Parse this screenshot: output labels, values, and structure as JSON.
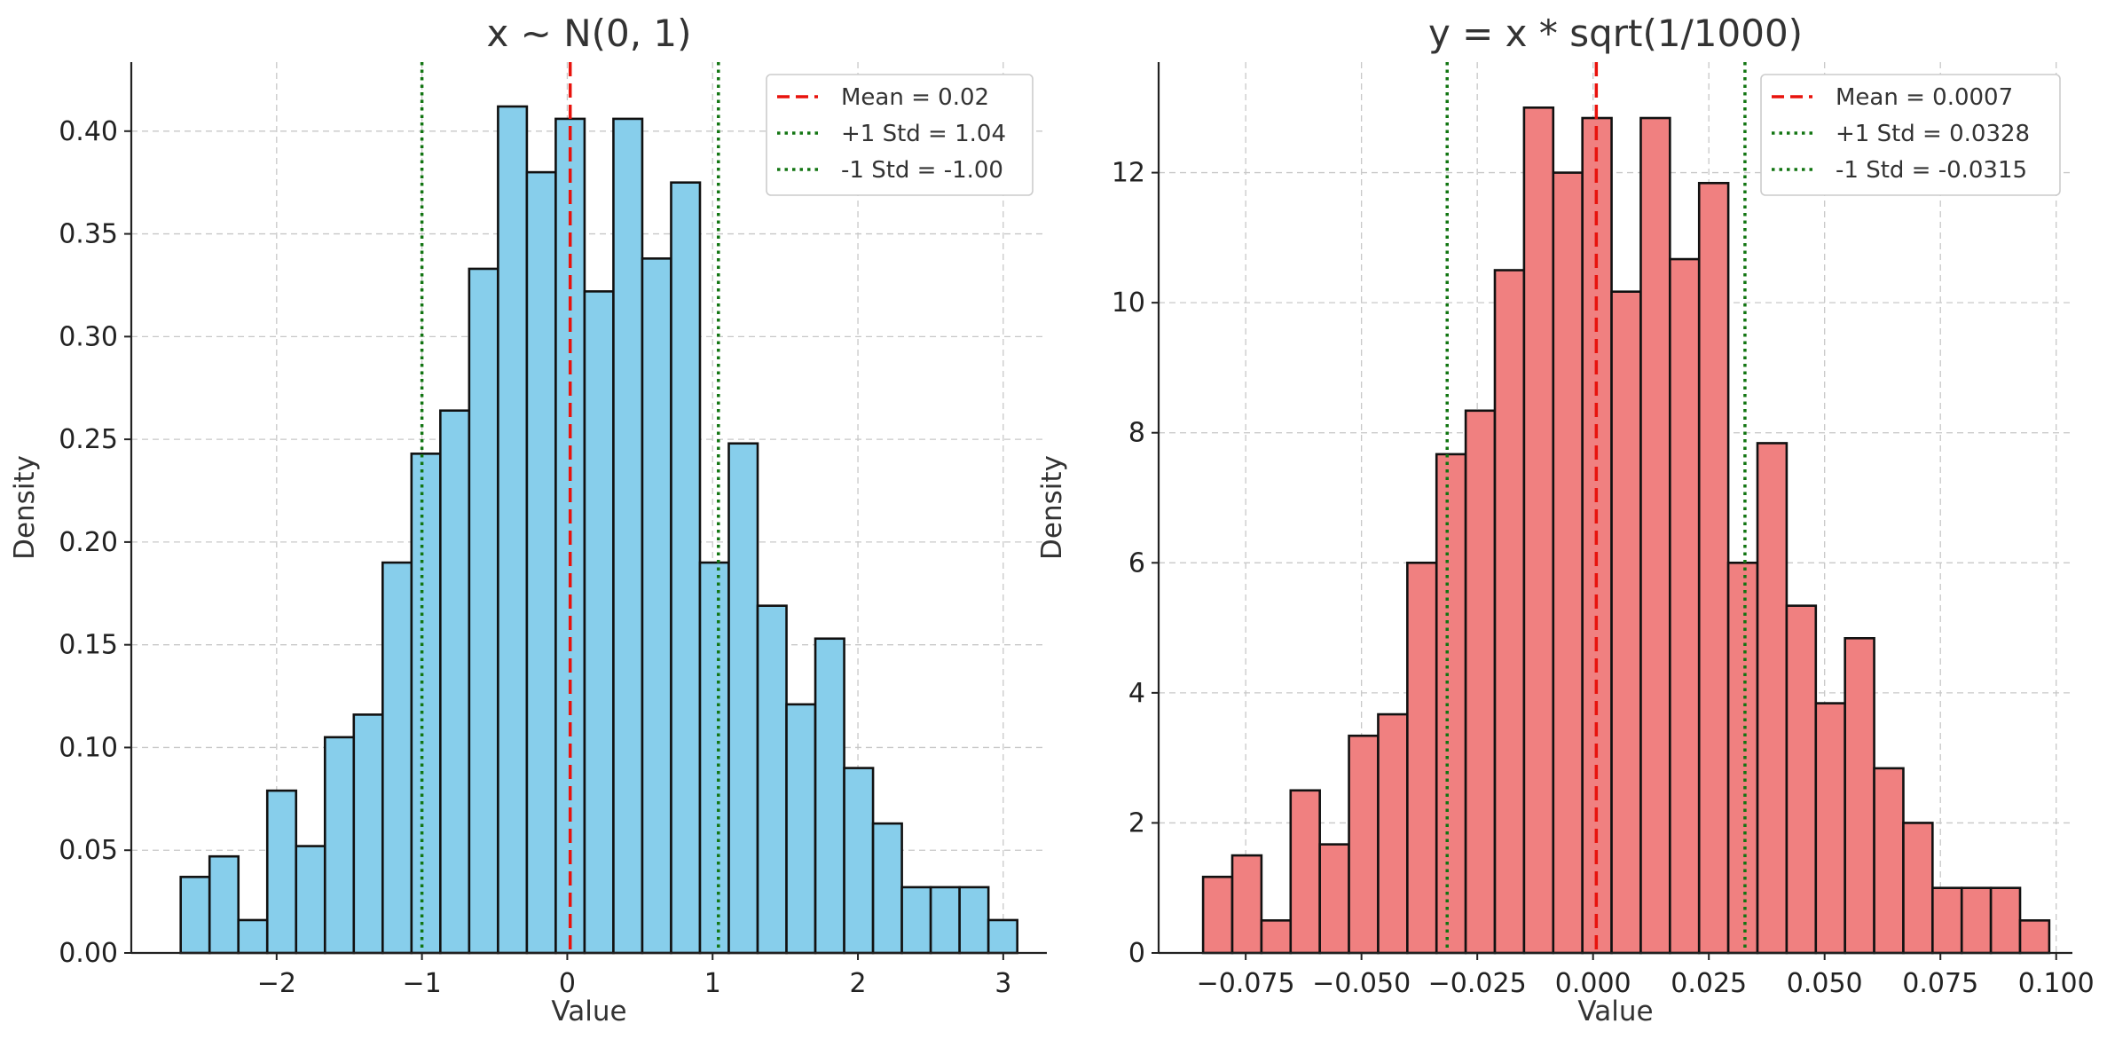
{
  "chart_data": [
    {
      "type": "bar",
      "title": "x ~ N(0, 1)",
      "xlabel": "Value",
      "ylabel": "Density",
      "xlim": [
        -3.0,
        3.3
      ],
      "ylim": [
        0,
        0.4336
      ],
      "xticks": [
        -2,
        -1,
        0,
        1,
        2,
        3
      ],
      "xtick_labels": [
        "−2",
        "−1",
        "0",
        "1",
        "2",
        "3"
      ],
      "yticks": [
        0,
        0.05,
        0.1,
        0.15,
        0.2,
        0.25,
        0.3,
        0.35,
        0.4
      ],
      "ytick_labels": [
        "0.00",
        "0.05",
        "0.10",
        "0.15",
        "0.20",
        "0.25",
        "0.30",
        "0.35",
        "0.40"
      ],
      "grid": true,
      "legend_position": "top-right",
      "bar_color": "#87CEEB",
      "bin_edges": [
        -2.66,
        -2.4615,
        -2.263,
        -2.0645,
        -1.866,
        -1.6675,
        -1.469,
        -1.2705,
        -1.072,
        -0.8735,
        -0.675,
        -0.4765,
        -0.278,
        -0.0795,
        0.119,
        0.3175,
        0.516,
        0.7145,
        0.913,
        1.1115,
        1.31,
        1.5085,
        1.707,
        1.9055,
        2.104,
        2.3025,
        2.501,
        2.6995,
        2.898,
        3.0965
      ],
      "values": [
        0.037,
        0.047,
        0.016,
        0.079,
        0.052,
        0.105,
        0.116,
        0.19,
        0.243,
        0.264,
        0.333,
        0.412,
        0.38,
        0.406,
        0.322,
        0.406,
        0.338,
        0.375,
        0.19,
        0.248,
        0.169,
        0.121,
        0.153,
        0.09,
        0.063,
        0.032,
        0.032,
        0.032,
        0.016,
        0.011
      ],
      "reference_lines": [
        {
          "label": "Mean = 0.02",
          "value": 0.02,
          "style": "dashed",
          "color": "#e8120c"
        },
        {
          "label": "+1 Std = 1.04",
          "value": 1.04,
          "style": "dotted",
          "color": "#127512"
        },
        {
          "label": "-1 Std = -1.00",
          "value": -1.0,
          "style": "dotted",
          "color": "#127512"
        }
      ]
    },
    {
      "type": "bar",
      "title": "y = x * sqrt(1/1000)",
      "xlabel": "Value",
      "ylabel": "Density",
      "xlim": [
        -0.0938,
        0.1035
      ],
      "ylim": [
        0,
        13.7
      ],
      "xticks": [
        -0.075,
        -0.05,
        -0.025,
        0,
        0.025,
        0.05,
        0.075,
        0.1
      ],
      "xtick_labels": [
        "−0.075",
        "−0.050",
        "−0.025",
        "0.000",
        "0.025",
        "0.050",
        "0.075",
        "0.100"
      ],
      "yticks": [
        0,
        2,
        4,
        6,
        8,
        10,
        12
      ],
      "ytick_labels": [
        "0",
        "2",
        "4",
        "6",
        "8",
        "10",
        "12"
      ],
      "grid": true,
      "legend_position": "top-right",
      "bar_color": "#F08080",
      "bin_edges": [
        -0.0842,
        -0.0779,
        -0.0716,
        -0.0653,
        -0.059,
        -0.0527,
        -0.0464,
        -0.0401,
        -0.0338,
        -0.0275,
        -0.0212,
        -0.0149,
        -0.0086,
        -0.0023,
        0.004,
        0.0103,
        0.0166,
        0.0229,
        0.0292,
        0.0355,
        0.0418,
        0.0481,
        0.0544,
        0.0607,
        0.067,
        0.0733,
        0.0796,
        0.0859,
        0.0922,
        0.0985
      ],
      "values": [
        1.17,
        1.5,
        0.5,
        2.5,
        1.67,
        3.34,
        3.67,
        6.0,
        7.67,
        8.34,
        10.5,
        13.0,
        12.0,
        12.84,
        10.17,
        12.84,
        10.67,
        11.84,
        6.0,
        7.84,
        5.34,
        3.84,
        4.84,
        2.84,
        2.0,
        1.0,
        1.0,
        1.0,
        0.5,
        0.33
      ],
      "reference_lines": [
        {
          "label": "Mean = 0.0007",
          "value": 0.0007,
          "style": "dashed",
          "color": "#e8120c"
        },
        {
          "label": "+1 Std = 0.0328",
          "value": 0.0328,
          "style": "dotted",
          "color": "#127512"
        },
        {
          "label": "-1 Std = -0.0315",
          "value": -0.0315,
          "style": "dotted",
          "color": "#127512"
        }
      ]
    }
  ]
}
